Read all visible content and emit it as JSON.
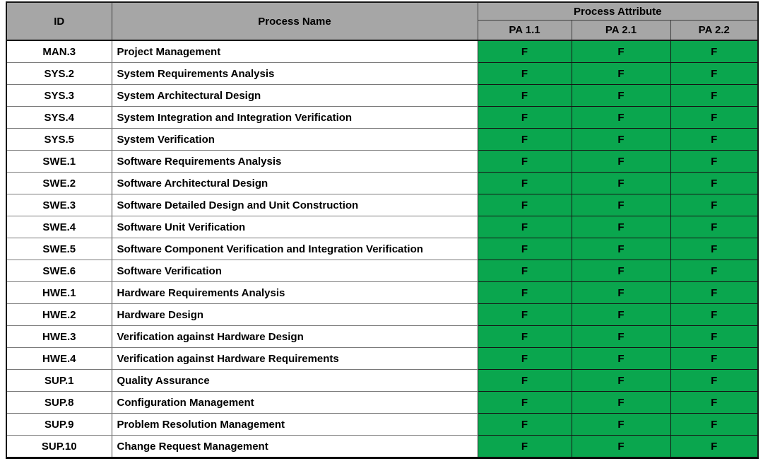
{
  "colors": {
    "header_bg": "#a6a6a6",
    "rating_f_bg": "#0aa64e",
    "rating_text": "#000000"
  },
  "table": {
    "header": {
      "id": "ID",
      "process_name": "Process Name",
      "process_attribute": "Process Attribute",
      "pa_columns": [
        "PA 1.1",
        "PA 2.1",
        "PA 2.2"
      ]
    },
    "rows": [
      {
        "id": "MAN.3",
        "name": "Project Management",
        "ratings": [
          "F",
          "F",
          "F"
        ]
      },
      {
        "id": "SYS.2",
        "name": "System Requirements Analysis",
        "ratings": [
          "F",
          "F",
          "F"
        ]
      },
      {
        "id": "SYS.3",
        "name": "System Architectural Design",
        "ratings": [
          "F",
          "F",
          "F"
        ]
      },
      {
        "id": "SYS.4",
        "name": "System Integration and Integration Verification",
        "ratings": [
          "F",
          "F",
          "F"
        ]
      },
      {
        "id": "SYS.5",
        "name": "System Verification",
        "ratings": [
          "F",
          "F",
          "F"
        ]
      },
      {
        "id": "SWE.1",
        "name": "Software Requirements Analysis",
        "ratings": [
          "F",
          "F",
          "F"
        ]
      },
      {
        "id": "SWE.2",
        "name": "Software Architectural Design",
        "ratings": [
          "F",
          "F",
          "F"
        ]
      },
      {
        "id": "SWE.3",
        "name": "Software Detailed Design and Unit Construction",
        "ratings": [
          "F",
          "F",
          "F"
        ]
      },
      {
        "id": "SWE.4",
        "name": "Software Unit Verification",
        "ratings": [
          "F",
          "F",
          "F"
        ]
      },
      {
        "id": "SWE.5",
        "name": "Software Component Verification and Integration Verification",
        "ratings": [
          "F",
          "F",
          "F"
        ]
      },
      {
        "id": "SWE.6",
        "name": "Software Verification",
        "ratings": [
          "F",
          "F",
          "F"
        ]
      },
      {
        "id": "HWE.1",
        "name": "Hardware Requirements Analysis",
        "ratings": [
          "F",
          "F",
          "F"
        ]
      },
      {
        "id": "HWE.2",
        "name": "Hardware Design",
        "ratings": [
          "F",
          "F",
          "F"
        ]
      },
      {
        "id": "HWE.3",
        "name": "Verification against Hardware Design",
        "ratings": [
          "F",
          "F",
          "F"
        ]
      },
      {
        "id": "HWE.4",
        "name": "Verification against Hardware Requirements",
        "ratings": [
          "F",
          "F",
          "F"
        ]
      },
      {
        "id": "SUP.1",
        "name": "Quality Assurance",
        "ratings": [
          "F",
          "F",
          "F"
        ]
      },
      {
        "id": "SUP.8",
        "name": "Configuration Management",
        "ratings": [
          "F",
          "F",
          "F"
        ]
      },
      {
        "id": "SUP.9",
        "name": "Problem Resolution Management",
        "ratings": [
          "F",
          "F",
          "F"
        ]
      },
      {
        "id": "SUP.10",
        "name": "Change Request Management",
        "ratings": [
          "F",
          "F",
          "F"
        ]
      }
    ]
  }
}
